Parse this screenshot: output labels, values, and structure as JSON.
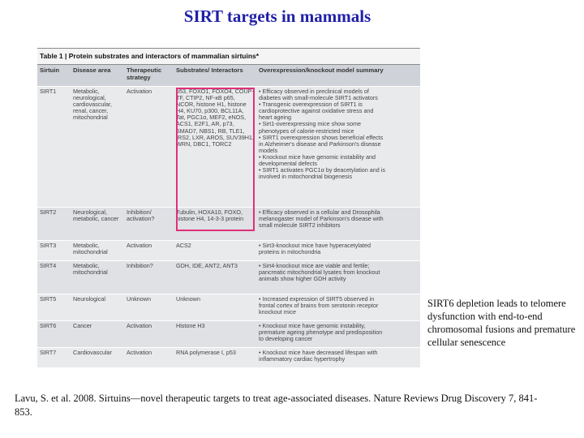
{
  "page": {
    "title": "SIRT targets in mammals",
    "side_note": "SIRT6 depletion leads to telomere dysfunction with end-to-end chromosomal fusions and premature cellular senescence",
    "reference": "Lavu, S. et al. 2008. Sirtuins—novel therapeutic targets to treat age-associated diseases. Nature Reviews Drug Discovery 7, 841-853.",
    "highlight_color": "#e0307a",
    "title_color": "#2020a8"
  },
  "table": {
    "caption_label": "Table 1 |",
    "caption_text": " Protein substrates and interactors of mammalian sirtuins*",
    "headers": [
      "Sirtuin",
      "Disease area",
      "Therapeutic strategy",
      "Substrates/ Interactors",
      "Overexpression/knockout model summary"
    ],
    "rows": [
      {
        "sirtuin": "SIRT1",
        "disease": "Metabolic, neurological, cardiovascular, renal, cancer, mitochondrial",
        "strategy": "Activation",
        "substrates": "p53, FOXO1, FOXO4, COUP-TF, CTIP2, NF-κB p65, NCOR, histone H1, histone H4, KU70, p300, BCL11A, Tat, PGC1α, MEF2, eNOS, ACS1, E2F1, AR, p73, SMAD7, NBS1, RB, TLE1, IRS2, LXR, AROS, SUV39H1, WRN, DBC1, TORC2",
        "summary": [
          "• Efficacy observed in preclinical models of",
          "  diabetes with small-molecule SIRT1 activators",
          "• Transgenic overexpression of SIRT1 is",
          "  cardioprotective against oxidative stress and",
          "  heart ageing",
          "• Sirt1-overexpressing mice show some",
          "  phenotypes of calorie-restricted mice",
          "• SIRT1 overexpression shows beneficial effects",
          "  in Alzheimer's disease and Parkinson's disease",
          "  models",
          "• Knockout mice have genomic instability and",
          "  developmental defects",
          "• SIRT1 activates PGC1α by deacetylation and is",
          "  involved in mitochondrial biogenesis"
        ]
      },
      {
        "sirtuin": "SIRT2",
        "disease": "Neurological, metabolic, cancer",
        "strategy": "Inhibition/ activation?",
        "substrates": "Tubulin, HOXA10, FOXO, histone H4, 14-3-3 protein",
        "summary": [
          "• Efficacy observed in a cellular and Drosophila",
          "  melanogaster model of Parkinson's disease with",
          "  small molecule SIRT2 inhibitors"
        ]
      },
      {
        "sirtuin": "SIRT3",
        "disease": "Metabolic, mitochondrial",
        "strategy": "Activation",
        "substrates": "ACS2",
        "summary": [
          "• Sirt3-knockout mice have hyperacetylated",
          "  proteins in mitochondria"
        ]
      },
      {
        "sirtuin": "SIRT4",
        "disease": "Metabolic, mitochondrial",
        "strategy": "Inhibition?",
        "substrates": "GDH, IDE, ANT2, ANT3",
        "summary": [
          "• Sirt4-knockout mice are viable and fertile;",
          "  pancreatic mitochondrial lysates from knockout",
          "  animals show higher GDH activity"
        ]
      },
      {
        "sirtuin": "SIRT5",
        "disease": "Neurological",
        "strategy": "Unknown",
        "substrates": "Unknown",
        "summary": [
          "• Increased expression of SIRT5 observed in",
          "  frontal cortex of brains from serotonin receptor",
          "  knockout mice"
        ]
      },
      {
        "sirtuin": "SIRT6",
        "disease": "Cancer",
        "strategy": "Activation",
        "substrates": "Histone H3",
        "summary": [
          "• Knockout mice have genomic instability,",
          "  premature ageing phenotype and predisposition",
          "  to developing cancer"
        ]
      },
      {
        "sirtuin": "SIRT7",
        "disease": "Cardiovascular",
        "strategy": "Activation",
        "substrates": "RNA polymerase I, p53",
        "summary": [
          "• Knockout mice have decreased lifespan with",
          "  inflammatory cardiac hypertrophy"
        ]
      }
    ]
  }
}
